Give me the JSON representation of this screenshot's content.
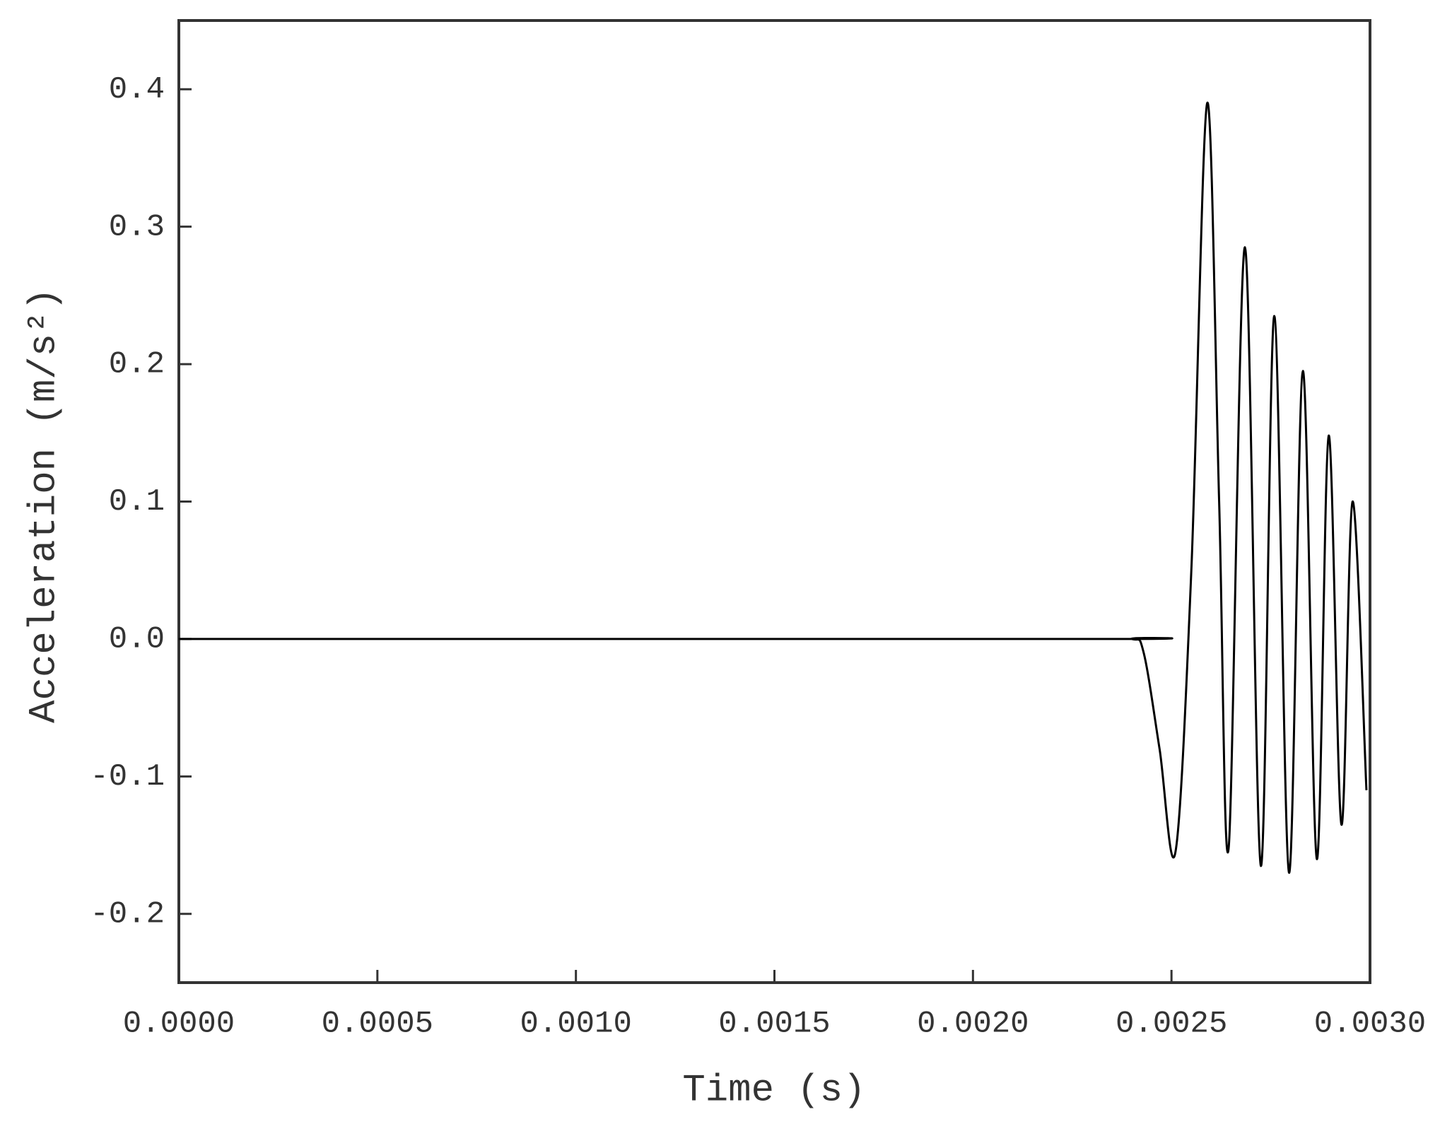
{
  "chart_data": {
    "type": "line",
    "xlabel": "Time (s)",
    "ylabel": "Acceleration (m/s²)",
    "x": [
      0,
      0.0023,
      0.0024,
      0.00243,
      0.00247,
      0.00251,
      0.00255,
      0.00259,
      0.00262,
      0.002644,
      0.002685,
      0.002725,
      0.002759,
      0.002796,
      0.002831,
      0.002866,
      0.002896,
      0.002928,
      0.002956,
      0.002991
    ],
    "series": [
      {
        "color": "#000000",
        "values": [
          0,
          0,
          0,
          -0.01,
          -0.08,
          -0.155,
          0.05,
          0.39,
          0.1,
          -0.152,
          0.285,
          -0.165,
          0.235,
          -0.17,
          0.195,
          -0.16,
          0.148,
          -0.135,
          0.1,
          -0.11
        ]
      }
    ],
    "xlim": [
      0,
      0.003
    ],
    "ylim": [
      -0.25,
      0.45
    ],
    "xticks": [
      {
        "value": 0,
        "label": "0.0000"
      },
      {
        "value": 0.0005,
        "label": "0.0005"
      },
      {
        "value": 0.001,
        "label": "0.0010"
      },
      {
        "value": 0.0015,
        "label": "0.0015"
      },
      {
        "value": 0.002,
        "label": "0.0020"
      },
      {
        "value": 0.0025,
        "label": "0.0025"
      },
      {
        "value": 0.003,
        "label": "0.0030"
      }
    ],
    "yticks": [
      -0.2,
      -0.1,
      {
        "value": 0,
        "label": "0.0"
      },
      0.1,
      0.2,
      0.3,
      0.4
    ]
  }
}
